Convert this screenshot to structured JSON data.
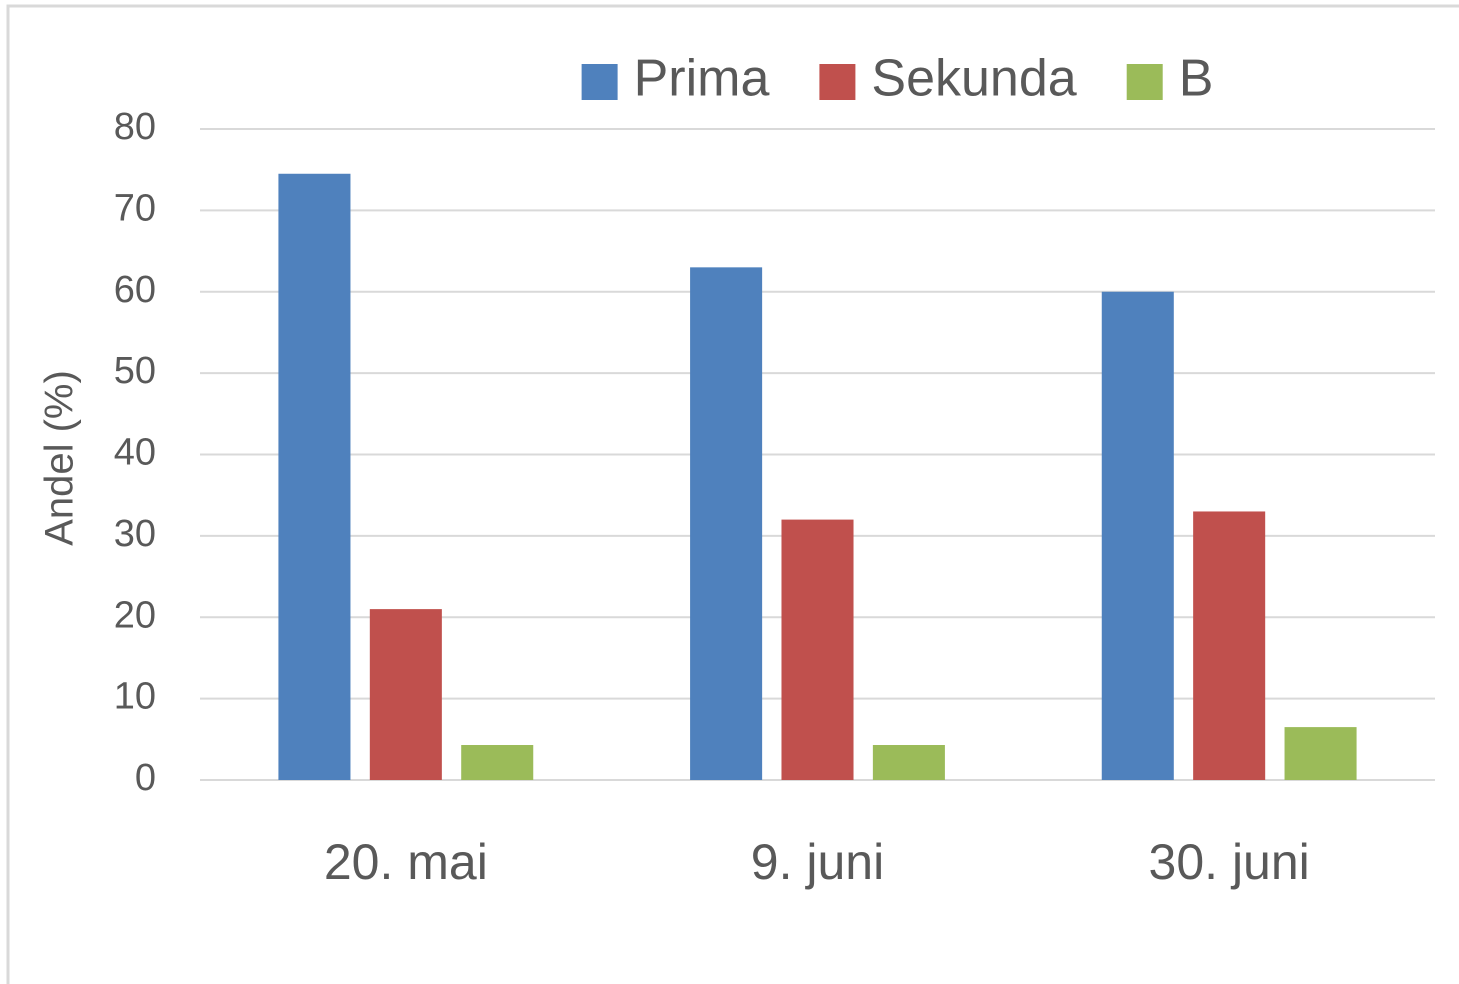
{
  "chart_data": {
    "type": "bar",
    "y_label": "Andel (%)",
    "categories": [
      "20. mai",
      "9. juni",
      "30. juni"
    ],
    "series": [
      {
        "name": "Prima",
        "color": "#4f81bd",
        "values": [
          74.5,
          63,
          60
        ]
      },
      {
        "name": "Sekunda",
        "color": "#c0504d",
        "values": [
          21,
          32,
          33
        ]
      },
      {
        "name": "B",
        "color": "#9bbb59",
        "values": [
          4.3,
          4.3,
          6.5
        ]
      }
    ],
    "ylim": [
      0,
      80
    ],
    "yticks": [
      0,
      10,
      20,
      30,
      40,
      50,
      60,
      70,
      80
    ],
    "grid": true,
    "legend": "top"
  }
}
